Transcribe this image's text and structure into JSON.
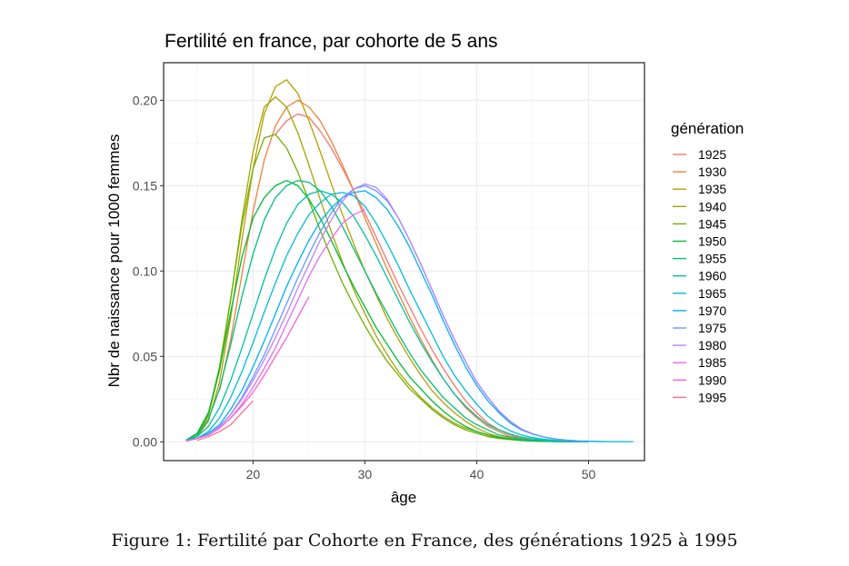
{
  "colors": {
    "panel_border": "#333333",
    "grid_major": "#ebebeb",
    "grid_minor": "#f5f5f5",
    "text": "#000000",
    "tick_text": "#4d4d4d"
  },
  "caption": {
    "figure_label": "Figure 1:",
    "text": "Fertilité par Cohorte en France, des générations 1925 à 1995"
  },
  "chart_data": {
    "type": "line",
    "title": "Fertilité en france, par cohorte de 5 ans",
    "xlabel": "âge",
    "ylabel": "Nbr de naissance pour 1000 femmes",
    "xlim": [
      12,
      55
    ],
    "ylim": [
      -0.011,
      0.222
    ],
    "xticks": [
      20,
      30,
      40,
      50
    ],
    "yticks": [
      0.0,
      0.05,
      0.1,
      0.15,
      0.2
    ],
    "ytick_labels": [
      "0.00",
      "0.05",
      "0.10",
      "0.15",
      "0.20"
    ],
    "grid": true,
    "legend": {
      "title": "génération",
      "position": "right"
    },
    "series": [
      {
        "name": "1925",
        "color": "#F8766D",
        "x": [
          22,
          23,
          24,
          25,
          26,
          27,
          28,
          29,
          30,
          31,
          32,
          33,
          34,
          35,
          36,
          37,
          38,
          39,
          40,
          41,
          42,
          43,
          44,
          45,
          46,
          47,
          48,
          49,
          50
        ],
        "y": [
          0.18,
          0.188,
          0.192,
          0.19,
          0.182,
          0.172,
          0.16,
          0.147,
          0.134,
          0.12,
          0.106,
          0.092,
          0.079,
          0.066,
          0.054,
          0.043,
          0.033,
          0.024,
          0.017,
          0.011,
          0.007,
          0.004,
          0.002,
          0.001,
          0.0005,
          0.0003,
          0.0002,
          0.0001,
          0.0001
        ]
      },
      {
        "name": "1930",
        "color": "#EC823C",
        "x": [
          17,
          18,
          19,
          20,
          21,
          22,
          23,
          24,
          25,
          26,
          27,
          28,
          29,
          30,
          31,
          32,
          33,
          34,
          35,
          36,
          37,
          38,
          39,
          40,
          41,
          42,
          43,
          44,
          45,
          46,
          47,
          48,
          49,
          50
        ],
        "y": [
          0.03,
          0.06,
          0.098,
          0.135,
          0.165,
          0.185,
          0.196,
          0.2,
          0.196,
          0.188,
          0.176,
          0.162,
          0.147,
          0.131,
          0.116,
          0.101,
          0.087,
          0.073,
          0.06,
          0.048,
          0.037,
          0.028,
          0.02,
          0.014,
          0.009,
          0.006,
          0.003,
          0.002,
          0.001,
          0.0005,
          0.0003,
          0.0002,
          0.0001,
          0.0001
        ]
      },
      {
        "name": "1935",
        "color": "#BB9D00",
        "x": [
          15,
          16,
          17,
          18,
          19,
          20,
          21,
          22,
          23,
          24,
          25,
          26,
          27,
          28,
          29,
          30,
          31,
          32,
          33,
          34,
          35,
          36,
          37,
          38,
          39,
          40,
          41,
          42,
          43,
          44,
          45,
          46,
          47,
          48,
          49,
          50
        ],
        "y": [
          0.003,
          0.012,
          0.035,
          0.073,
          0.118,
          0.16,
          0.192,
          0.208,
          0.212,
          0.204,
          0.188,
          0.17,
          0.151,
          0.133,
          0.116,
          0.1,
          0.086,
          0.072,
          0.06,
          0.049,
          0.039,
          0.03,
          0.023,
          0.017,
          0.012,
          0.008,
          0.005,
          0.003,
          0.002,
          0.001,
          0.0006,
          0.0003,
          0.0002,
          0.0001,
          0.0001,
          0.0001
        ]
      },
      {
        "name": "1940",
        "color": "#A3A500",
        "x": [
          15,
          16,
          17,
          18,
          19,
          20,
          21,
          22,
          23,
          24,
          25,
          26,
          27,
          28,
          29,
          30,
          31,
          32,
          33,
          34,
          35,
          36,
          37,
          38,
          39,
          40,
          41,
          42,
          43,
          44,
          45,
          46,
          47,
          48,
          49,
          50
        ],
        "y": [
          0.004,
          0.015,
          0.042,
          0.083,
          0.13,
          0.17,
          0.196,
          0.202,
          0.196,
          0.181,
          0.162,
          0.142,
          0.123,
          0.105,
          0.089,
          0.075,
          0.062,
          0.051,
          0.041,
          0.033,
          0.026,
          0.02,
          0.015,
          0.011,
          0.008,
          0.006,
          0.004,
          0.002,
          0.0015,
          0.001,
          0.0006,
          0.0003,
          0.0002,
          0.0001,
          0.0001,
          0.0001
        ]
      },
      {
        "name": "1945",
        "color": "#6FB000",
        "x": [
          15,
          16,
          17,
          18,
          19,
          20,
          21,
          22,
          23,
          24,
          25,
          26,
          27,
          28,
          29,
          30,
          31,
          32,
          33,
          34,
          35,
          36,
          37,
          38,
          39,
          40,
          41,
          42,
          43,
          44,
          45,
          46,
          47,
          48,
          49,
          50
        ],
        "y": [
          0.004,
          0.016,
          0.044,
          0.084,
          0.127,
          0.16,
          0.178,
          0.18,
          0.172,
          0.158,
          0.141,
          0.124,
          0.108,
          0.093,
          0.08,
          0.068,
          0.057,
          0.047,
          0.039,
          0.031,
          0.025,
          0.019,
          0.014,
          0.01,
          0.007,
          0.005,
          0.003,
          0.002,
          0.0013,
          0.0008,
          0.0005,
          0.0003,
          0.0002,
          0.0001,
          0.0001,
          0.0001
        ]
      },
      {
        "name": "1950",
        "color": "#00BA38",
        "x": [
          14,
          15,
          16,
          17,
          18,
          19,
          20,
          21,
          22,
          23,
          24,
          25,
          26,
          27,
          28,
          29,
          30,
          31,
          32,
          33,
          34,
          35,
          36,
          37,
          38,
          39,
          40,
          41,
          42,
          43,
          44,
          45,
          46,
          47,
          48,
          49,
          50
        ],
        "y": [
          0.001,
          0.005,
          0.017,
          0.042,
          0.076,
          0.108,
          0.131,
          0.143,
          0.15,
          0.153,
          0.15,
          0.142,
          0.131,
          0.118,
          0.104,
          0.091,
          0.079,
          0.067,
          0.057,
          0.047,
          0.038,
          0.031,
          0.024,
          0.018,
          0.013,
          0.009,
          0.006,
          0.004,
          0.0025,
          0.0015,
          0.0009,
          0.0005,
          0.0003,
          0.0002,
          0.0001,
          0.0001,
          0.0001
        ]
      },
      {
        "name": "1955",
        "color": "#00BF7D",
        "x": [
          14,
          15,
          16,
          17,
          18,
          19,
          20,
          21,
          22,
          23,
          24,
          25,
          26,
          27,
          28,
          29,
          30,
          31,
          32,
          33,
          34,
          35,
          36,
          37,
          38,
          39,
          40,
          41,
          42,
          43,
          44,
          45,
          46,
          47,
          48,
          49,
          50
        ],
        "y": [
          0.001,
          0.004,
          0.013,
          0.031,
          0.057,
          0.085,
          0.11,
          0.13,
          0.143,
          0.15,
          0.153,
          0.152,
          0.147,
          0.138,
          0.126,
          0.113,
          0.1,
          0.087,
          0.075,
          0.063,
          0.052,
          0.042,
          0.034,
          0.026,
          0.02,
          0.014,
          0.01,
          0.007,
          0.004,
          0.0027,
          0.0016,
          0.0009,
          0.0005,
          0.0003,
          0.0002,
          0.0001,
          0.0001
        ]
      },
      {
        "name": "1960",
        "color": "#00C1A3",
        "x": [
          14,
          15,
          16,
          17,
          18,
          19,
          20,
          21,
          22,
          23,
          24,
          25,
          26,
          27,
          28,
          29,
          30,
          31,
          32,
          33,
          34,
          35,
          36,
          37,
          38,
          39,
          40,
          41,
          42,
          43,
          44,
          45,
          46,
          47,
          48,
          49,
          50
        ],
        "y": [
          0.001,
          0.003,
          0.009,
          0.02,
          0.036,
          0.055,
          0.075,
          0.095,
          0.113,
          0.128,
          0.139,
          0.145,
          0.147,
          0.145,
          0.14,
          0.132,
          0.121,
          0.109,
          0.096,
          0.083,
          0.07,
          0.058,
          0.047,
          0.037,
          0.028,
          0.021,
          0.015,
          0.01,
          0.007,
          0.0045,
          0.0028,
          0.0017,
          0.001,
          0.0006,
          0.0003,
          0.0002,
          0.0001
        ]
      },
      {
        "name": "1965",
        "color": "#00BCD8",
        "x": [
          14,
          15,
          16,
          17,
          18,
          19,
          20,
          21,
          22,
          23,
          24,
          25,
          26,
          27,
          28,
          29,
          30,
          31,
          32,
          33,
          34,
          35,
          36,
          37,
          38,
          39,
          40,
          41,
          42,
          43,
          44,
          45,
          46,
          47,
          48,
          49,
          50
        ],
        "y": [
          0.001,
          0.002,
          0.006,
          0.014,
          0.026,
          0.041,
          0.058,
          0.076,
          0.093,
          0.109,
          0.122,
          0.133,
          0.14,
          0.145,
          0.146,
          0.144,
          0.138,
          0.128,
          0.116,
          0.103,
          0.089,
          0.076,
          0.063,
          0.05,
          0.039,
          0.03,
          0.022,
          0.015,
          0.01,
          0.0065,
          0.004,
          0.0025,
          0.0015,
          0.0009,
          0.0005,
          0.0003,
          0.0002
        ]
      },
      {
        "name": "1970",
        "color": "#00B0F6",
        "x": [
          14,
          15,
          16,
          17,
          18,
          19,
          20,
          21,
          22,
          23,
          24,
          25,
          26,
          27,
          28,
          29,
          30,
          31,
          32,
          33,
          34,
          35,
          36,
          37,
          38,
          39,
          40,
          41,
          42,
          43,
          44,
          45,
          46,
          47,
          48,
          49,
          50,
          51,
          52,
          53,
          54
        ],
        "y": [
          0.0005,
          0.002,
          0.005,
          0.01,
          0.019,
          0.03,
          0.044,
          0.059,
          0.075,
          0.091,
          0.105,
          0.118,
          0.129,
          0.137,
          0.143,
          0.146,
          0.147,
          0.143,
          0.136,
          0.126,
          0.114,
          0.1,
          0.086,
          0.071,
          0.057,
          0.044,
          0.033,
          0.024,
          0.017,
          0.011,
          0.007,
          0.0045,
          0.0028,
          0.0017,
          0.001,
          0.0006,
          0.0004,
          0.0002,
          0.0001,
          0.0001,
          0.0001
        ]
      },
      {
        "name": "1975",
        "color": "#619CFF",
        "x": [
          14,
          15,
          16,
          17,
          18,
          19,
          20,
          21,
          22,
          23,
          24,
          25,
          26,
          27,
          28,
          29,
          30,
          31,
          32,
          33,
          34,
          35,
          36,
          37,
          38,
          39,
          40,
          41,
          42,
          43,
          44,
          45,
          46,
          47,
          48,
          49,
          50
        ],
        "y": [
          0.0005,
          0.002,
          0.004,
          0.009,
          0.016,
          0.026,
          0.038,
          0.051,
          0.066,
          0.081,
          0.096,
          0.11,
          0.123,
          0.134,
          0.143,
          0.148,
          0.15,
          0.147,
          0.141,
          0.131,
          0.118,
          0.104,
          0.089,
          0.074,
          0.06,
          0.047,
          0.035,
          0.026,
          0.018,
          0.012,
          0.0075,
          0.0047,
          0.0028,
          0.0016,
          0.0009,
          0.0005,
          0.0003
        ]
      },
      {
        "name": "1980",
        "color": "#B983FF",
        "x": [
          14,
          15,
          16,
          17,
          18,
          19,
          20,
          21,
          22,
          23,
          24,
          25,
          26,
          27,
          28,
          29,
          30,
          31,
          32,
          33,
          34,
          35,
          36,
          37,
          38,
          39,
          40,
          41,
          42,
          43,
          44,
          45
        ],
        "y": [
          0.0005,
          0.002,
          0.004,
          0.009,
          0.016,
          0.025,
          0.036,
          0.048,
          0.061,
          0.075,
          0.09,
          0.104,
          0.118,
          0.13,
          0.141,
          0.148,
          0.151,
          0.149,
          0.142,
          0.131,
          0.118,
          0.104,
          0.089,
          0.074,
          0.06,
          0.047,
          0.035,
          0.026,
          0.018,
          0.012,
          0.0075,
          0.0047
        ]
      },
      {
        "name": "1985",
        "color": "#E76BF3",
        "x": [
          14,
          15,
          16,
          17,
          18,
          19,
          20,
          21,
          22,
          23,
          24,
          25,
          26,
          27,
          28,
          29,
          30
        ],
        "y": [
          0.0005,
          0.002,
          0.004,
          0.008,
          0.014,
          0.022,
          0.032,
          0.043,
          0.055,
          0.069,
          0.083,
          0.097,
          0.109,
          0.119,
          0.128,
          0.133,
          0.136
        ]
      },
      {
        "name": "1990",
        "color": "#FD61D1",
        "x": [
          14,
          15,
          16,
          17,
          18,
          19,
          20,
          21,
          22,
          23,
          24,
          25
        ],
        "y": [
          0.0005,
          0.002,
          0.004,
          0.008,
          0.014,
          0.021,
          0.029,
          0.039,
          0.05,
          0.061,
          0.073,
          0.085
        ]
      },
      {
        "name": "1995",
        "color": "#FF6C91",
        "x": [
          15,
          16,
          17,
          18,
          19,
          20
        ],
        "y": [
          0.0008,
          0.003,
          0.006,
          0.01,
          0.017,
          0.024
        ]
      }
    ]
  }
}
